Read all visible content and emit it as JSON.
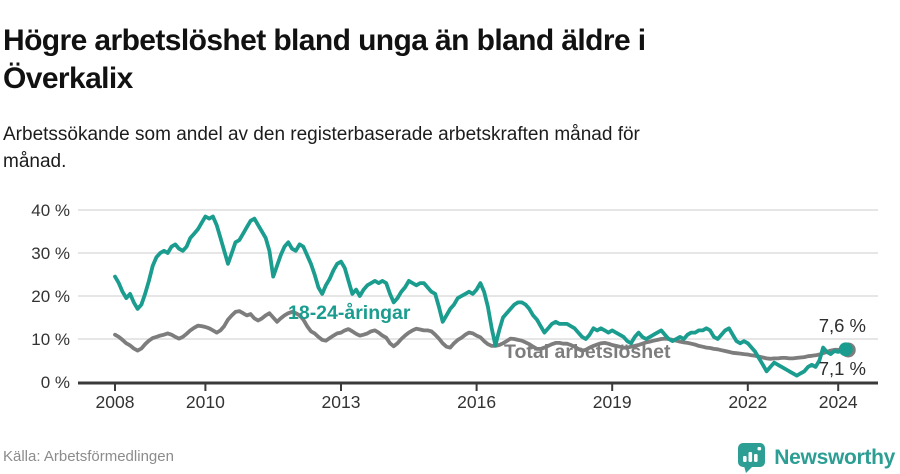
{
  "header": {
    "title_line1": "Högre arbetslöshet bland unga än bland äldre i",
    "title_line2": "Överkalix",
    "subtitle_line1": "Arbetssökande som andel av den registerbaserade arbetskraften månad för",
    "subtitle_line2": "månad."
  },
  "footer": {
    "source": "Källa: Arbetsförmedlingen",
    "brand": "Newsworthy"
  },
  "colors": {
    "accent_teal": "#1a9c8e",
    "line_gray": "#7d7d7d",
    "grid": "#dedede",
    "axis": "#3a3a3a",
    "axis_text": "#333333",
    "end_label_text": "#2e2e2e",
    "brand_teal": "#2d9e94"
  },
  "chart_data": {
    "type": "line",
    "title": "Högre arbetslöshet bland unga än bland äldre i Överkalix",
    "subtitle": "Arbetssökande som andel av den registerbaserade arbetskraften månad för månad.",
    "unit": "%",
    "grid": true,
    "x_start": {
      "year": 2008,
      "month": 1
    },
    "points_per_year": 12,
    "x_tick_years": [
      2008,
      2010,
      2013,
      2016,
      2019,
      2022,
      2024
    ],
    "x_tick_labels": [
      "2008",
      "2010",
      "2013",
      "2016",
      "2019",
      "2022",
      "2024"
    ],
    "y_ticks": [
      0,
      10,
      20,
      30,
      40
    ],
    "y_tick_labels": [
      "0 %",
      "10 %",
      "20 %",
      "30 %",
      "40 %"
    ],
    "ylim": [
      0,
      42
    ],
    "series": [
      {
        "name": "18-24-åringar",
        "color": "#1a9c8e",
        "end_label": "7,6 %",
        "end_value": 7.6,
        "values": [
          24.5,
          23,
          21,
          19.5,
          20.5,
          18.5,
          17,
          18,
          20.5,
          23.5,
          27,
          29,
          30,
          30.5,
          30,
          31.5,
          32,
          31,
          30.5,
          31.5,
          33.5,
          34.5,
          35.5,
          37,
          38.5,
          38,
          38.5,
          36.5,
          33.5,
          30.5,
          27.5,
          30,
          32.5,
          33,
          34.5,
          36,
          37.5,
          38,
          36.5,
          35,
          33.5,
          30.5,
          24.5,
          27,
          29.5,
          31.5,
          32.5,
          31,
          30.5,
          32,
          31.5,
          29.5,
          27.5,
          25,
          22,
          20.5,
          22.5,
          24,
          26,
          27.5,
          28,
          26.5,
          23.5,
          20.5,
          21.5,
          20,
          21.5,
          22.5,
          23,
          23.5,
          23,
          23.5,
          23,
          20.5,
          18.5,
          19.5,
          21,
          22,
          23.5,
          23,
          22.5,
          23,
          23,
          22,
          21,
          20.5,
          17.5,
          14,
          15.5,
          17,
          18,
          19.5,
          20,
          20.5,
          21,
          20.5,
          21.5,
          23,
          21,
          17.5,
          12.5,
          8.5,
          12,
          15,
          16,
          17,
          18,
          18.5,
          18.5,
          18,
          17,
          15.5,
          14.5,
          13,
          11.5,
          12.5,
          13.5,
          14,
          13.5,
          13.5,
          13.5,
          13,
          12.5,
          11.5,
          10.5,
          10,
          11,
          12.5,
          12,
          12.5,
          12,
          11.5,
          12,
          11.5,
          11,
          10.5,
          9.5,
          9,
          10.5,
          11.5,
          10.5,
          10,
          10.5,
          11,
          11.5,
          12,
          11,
          10,
          9.5,
          10,
          10.5,
          10,
          11,
          11.5,
          11.5,
          12,
          12,
          12.5,
          12,
          10.5,
          10,
          11,
          12,
          12.5,
          11,
          9.5,
          9,
          9.5,
          9,
          8,
          7,
          5.5,
          4,
          2.5,
          3.5,
          4.5,
          4,
          3.5,
          3,
          2.5,
          2,
          1.5,
          2,
          2.5,
          3.5,
          4,
          3.5,
          5,
          8,
          7,
          6.5,
          7.2,
          7,
          7.3,
          7.6
        ]
      },
      {
        "name": "Total arbetslöshet",
        "color": "#7d7d7d",
        "end_label": "7,1 %",
        "end_value": 7.1,
        "values": [
          11,
          10.5,
          9.8,
          9,
          8.5,
          7.8,
          7.3,
          7.8,
          8.8,
          9.6,
          10.2,
          10.5,
          10.8,
          11,
          11.3,
          11,
          10.5,
          10.1,
          10.5,
          11.2,
          12,
          12.6,
          13.1,
          13,
          12.8,
          12.5,
          12,
          11.5,
          12,
          13,
          14.5,
          15.5,
          16.3,
          16.5,
          16,
          15.5,
          15.8,
          14.8,
          14.3,
          14.8,
          15.5,
          16,
          15,
          14,
          14.8,
          15.5,
          16,
          16.3,
          16,
          15.5,
          14.5,
          13,
          11.8,
          11.3,
          10.5,
          9.8,
          9.6,
          10.2,
          10.8,
          11.3,
          11.5,
          12,
          12.3,
          11.8,
          11.2,
          10.8,
          11,
          11.3,
          11.8,
          12,
          11.5,
          10.8,
          10.3,
          9,
          8.3,
          9,
          10,
          10.8,
          11.5,
          12,
          12.4,
          12.2,
          12,
          12,
          11.8,
          11,
          10.1,
          9,
          8.2,
          8,
          9,
          9.8,
          10.3,
          11,
          11.5,
          11.3,
          10.8,
          10.4,
          9.5,
          8.8,
          8.4,
          8.4,
          8.6,
          9,
          9.5,
          10.1,
          10,
          9.8,
          9.6,
          9.2,
          8.8,
          8.2,
          7.7,
          7.7,
          8,
          8.4,
          8.8,
          9.1,
          9.1,
          8.9,
          8.9,
          8.6,
          8.2,
          7.7,
          7.3,
          7.5,
          8,
          8.4,
          8.7,
          9,
          9.1,
          8.9,
          8.6,
          8.4,
          8.2,
          8,
          8,
          8.2,
          8.4,
          8.6,
          8.9,
          9.2,
          9.4,
          9.6,
          9.8,
          10,
          10.1,
          10,
          9.8,
          9.6,
          9.4,
          9.2,
          9.1,
          8.9,
          8.7,
          8.4,
          8.2,
          8,
          7.9,
          7.7,
          7.6,
          7.4,
          7.2,
          7,
          6.8,
          6.7,
          6.6,
          6.5,
          6.4,
          6.2,
          6.1,
          5.9,
          5.7,
          5.5,
          5.4,
          5.5,
          5.5,
          5.6,
          5.6,
          5.5,
          5.5,
          5.6,
          5.7,
          5.8,
          6,
          6.1,
          6.2,
          6.4,
          6.7,
          7,
          7.3,
          7.5,
          7.5,
          7.3,
          7.1
        ]
      }
    ],
    "legend_position": "inline-labels"
  }
}
